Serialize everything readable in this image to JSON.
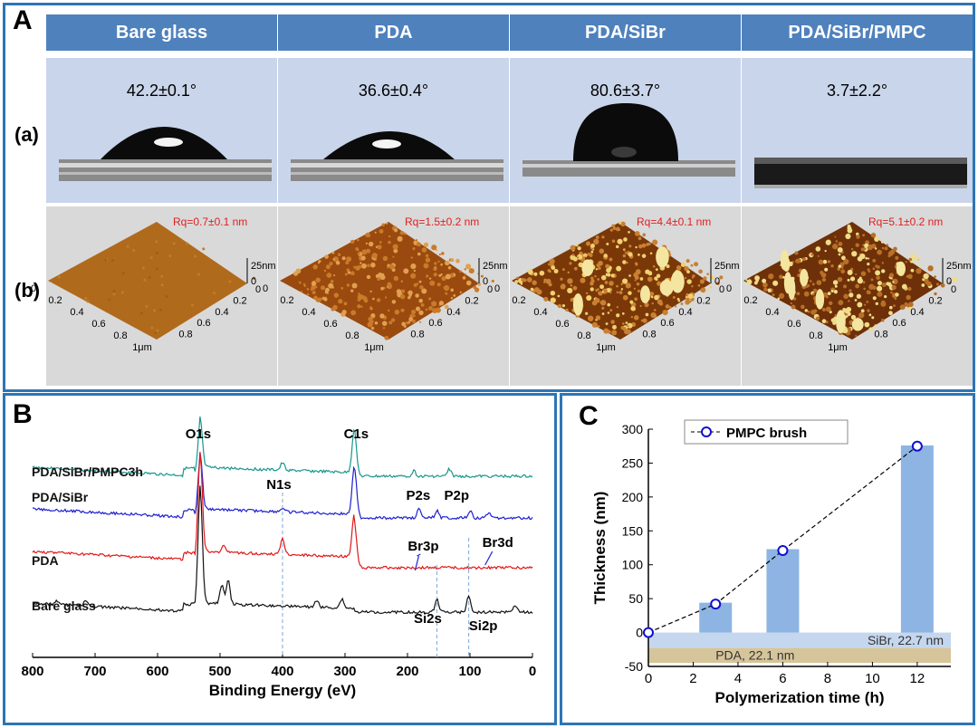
{
  "panel_A": {
    "label": "A",
    "columns": [
      {
        "header": "Bare glass",
        "angle": "42.2±0.1°",
        "rq": "Rq=0.7±0.1 nm"
      },
      {
        "header": "PDA",
        "angle": "36.6±0.4°",
        "rq": "Rq=1.5±0.2 nm"
      },
      {
        "header": "PDA/SiBr",
        "angle": "80.6±3.7°",
        "rq": "Rq=4.4±0.1 nm"
      },
      {
        "header": "PDA/SiBr/PMPC",
        "angle": "3.7±2.2°",
        "rq": "Rq=5.1±0.2 nm"
      }
    ],
    "row_a": "(a)",
    "row_b": "(b)",
    "afm_axis": {
      "z_top": "25nm",
      "z_zero": "0",
      "ticks": [
        "0",
        "0.2",
        "0.4",
        "0.6",
        "0.8",
        "1μm"
      ]
    }
  },
  "panel_B": {
    "label": "B"
  },
  "panel_C": {
    "label": "C"
  },
  "chart_data": [
    {
      "type": "line",
      "xlabel": "Binding Energy (eV)",
      "x_ticks": [
        "800",
        "700",
        "600",
        "500",
        "400",
        "300",
        "200",
        "100",
        "0"
      ],
      "xlim": [
        800,
        0
      ],
      "series": [
        {
          "name": "PDA/SiBr/PMPC3h",
          "color": "#17978f"
        },
        {
          "name": "PDA/SiBr",
          "color": "#1f1fd1"
        },
        {
          "name": "PDA",
          "color": "#e01818"
        },
        {
          "name": "Bare glass",
          "color": "#111111"
        }
      ],
      "peak_labels": [
        {
          "text": "O1s",
          "energy": 532
        },
        {
          "text": "C1s",
          "energy": 285
        },
        {
          "text": "N1s",
          "energy": 400
        },
        {
          "text": "P2s",
          "energy": 190
        },
        {
          "text": "P2p",
          "energy": 133
        },
        {
          "text": "Br3p",
          "energy": 182
        },
        {
          "text": "Br3d",
          "energy": 70
        },
        {
          "text": "Si2s",
          "energy": 153
        },
        {
          "text": "Si2p",
          "energy": 102
        }
      ]
    },
    {
      "type": "bar",
      "xlabel": "Polymerization time (h)",
      "ylabel": "Thickness (nm)",
      "xlim": [
        0,
        13.5
      ],
      "ylim": [
        -50,
        300
      ],
      "x_ticks": [
        "0",
        "2",
        "4",
        "6",
        "8",
        "10",
        "12"
      ],
      "y_ticks": [
        "-50",
        "0",
        "50",
        "100",
        "150",
        "200",
        "250",
        "300"
      ],
      "bars": {
        "x": [
          3,
          6,
          12
        ],
        "values": [
          44,
          123,
          276
        ]
      },
      "series": [
        {
          "name": "PMPC brush",
          "x": [
            0,
            3,
            6,
            12
          ],
          "values": [
            0,
            42,
            121,
            275
          ],
          "color": "#1010d0"
        }
      ],
      "layers": [
        {
          "text": "SiBr, 22.7 nm",
          "from": -22.7,
          "to": 0,
          "color": "#c5d7ee"
        },
        {
          "text": "PDA, 22.1 nm",
          "from": -44.8,
          "to": -22.7,
          "color": "#d6c59a"
        }
      ]
    }
  ]
}
